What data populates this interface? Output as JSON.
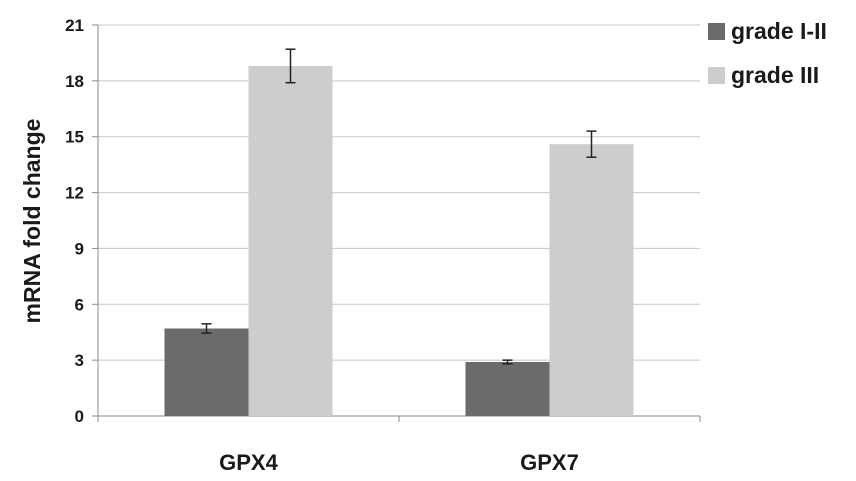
{
  "chart_data": {
    "type": "bar",
    "title": "",
    "xlabel": "",
    "ylabel": "mRNA fold change",
    "ylim": [
      0,
      21
    ],
    "yticks": [
      0,
      3,
      6,
      9,
      12,
      15,
      18,
      21
    ],
    "grid": true,
    "legend_position": "top-right",
    "categories": [
      "GPX4",
      "GPX7"
    ],
    "series": [
      {
        "name": "grade I-II",
        "color": "#6b6b6b",
        "values": [
          4.7,
          2.9
        ],
        "error": [
          0.25,
          0.1
        ]
      },
      {
        "name": "grade III",
        "color": "#cdcdcd",
        "values": [
          18.8,
          14.6
        ],
        "error": [
          0.9,
          0.7
        ]
      }
    ]
  }
}
